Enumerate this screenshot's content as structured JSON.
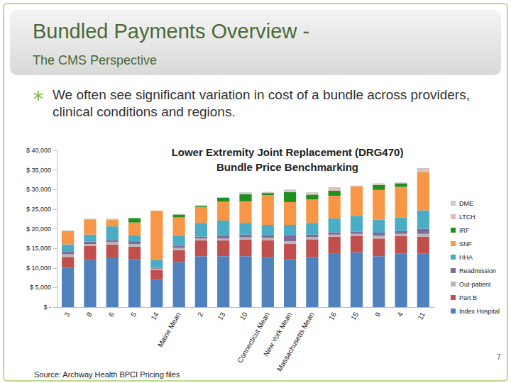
{
  "slide": {
    "title": "Bundled Payments Overview -",
    "subtitle": "The CMS Perspective",
    "bullet": "We often see significant variation in cost of a bundle across providers, clinical conditions and regions.",
    "source": "Source:  Archway Health BPCI Pricing files",
    "page_number": "7"
  },
  "chart_data": {
    "type": "bar",
    "title": "Lower Extremity Joint Replacement (DRG470)\nBundle Price Benchmarking",
    "categories": [
      "3",
      "8",
      "6",
      "5",
      "14",
      "Maine Mean",
      "2",
      "13",
      "10",
      "Connecticut Mean",
      "New York Mean",
      "Massachusetts Mean",
      "16",
      "15",
      "9",
      "4",
      "11"
    ],
    "series": [
      {
        "name": "Index Hospital",
        "color": "#4f81bd",
        "values": [
          10000,
          12000,
          12500,
          12200,
          7000,
          11500,
          13000,
          13000,
          13000,
          12800,
          12200,
          12800,
          13600,
          14000,
          13000,
          13700,
          13700
        ]
      },
      {
        "name": "Part B",
        "color": "#c0504d",
        "values": [
          2800,
          3600,
          3500,
          3200,
          2500,
          3000,
          4000,
          4000,
          4200,
          4300,
          4000,
          4500,
          4400,
          4200,
          4500,
          4400,
          4300
        ]
      },
      {
        "name": "Out-patient",
        "color": "#b7b7b7",
        "values": [
          700,
          500,
          600,
          700,
          300,
          600,
          500,
          500,
          600,
          600,
          600,
          600,
          500,
          500,
          700,
          600,
          700
        ]
      },
      {
        "name": "Readmission",
        "color": "#7f6a9a",
        "values": [
          600,
          600,
          500,
          700,
          200,
          600,
          500,
          600,
          700,
          600,
          1600,
          600,
          600,
          600,
          800,
          700,
          1300
        ]
      },
      {
        "name": "HHA",
        "color": "#4bacc6",
        "values": [
          1900,
          1800,
          3500,
          1500,
          2100,
          2400,
          3500,
          4000,
          3000,
          2700,
          2600,
          3000,
          3500,
          4000,
          3300,
          3500,
          4700
        ]
      },
      {
        "name": "SNF",
        "color": "#f79646",
        "values": [
          3400,
          3900,
          1700,
          3300,
          12500,
          4800,
          4000,
          4800,
          5500,
          7600,
          5800,
          6000,
          5800,
          7500,
          7600,
          7800,
          9700
        ]
      },
      {
        "name": "IRF",
        "color": "#1f8f1f",
        "values": [
          0,
          0,
          0,
          1100,
          0,
          700,
          300,
          1000,
          1800,
          500,
          2600,
          1200,
          1300,
          0,
          1300,
          900,
          0
        ]
      },
      {
        "name": "LTCH",
        "color": "#e6b9b8",
        "values": [
          0,
          0,
          0,
          0,
          0,
          0,
          0,
          0,
          200,
          0,
          200,
          300,
          500,
          0,
          200,
          0,
          500
        ]
      },
      {
        "name": "DME",
        "color": "#c8c8c8",
        "values": [
          200,
          200,
          300,
          0,
          0,
          200,
          200,
          200,
          300,
          300,
          400,
          300,
          400,
          200,
          200,
          200,
          600
        ]
      }
    ],
    "ylim": [
      0,
      40000
    ],
    "yticks": [
      {
        "value": 0,
        "label": "$ -"
      },
      {
        "value": 5000,
        "label": "$ 5,000"
      },
      {
        "value": 10000,
        "label": "$ 10,000"
      },
      {
        "value": 15000,
        "label": "$ 15,000"
      },
      {
        "value": 20000,
        "label": "$ 20,000"
      },
      {
        "value": 25000,
        "label": "$ 25,000"
      },
      {
        "value": 30000,
        "label": "$ 30,000"
      },
      {
        "value": 35000,
        "label": "$ 35,000"
      },
      {
        "value": 40000,
        "label": "$ 40,000"
      }
    ],
    "stacked": true,
    "grid": false,
    "legend": "right"
  }
}
